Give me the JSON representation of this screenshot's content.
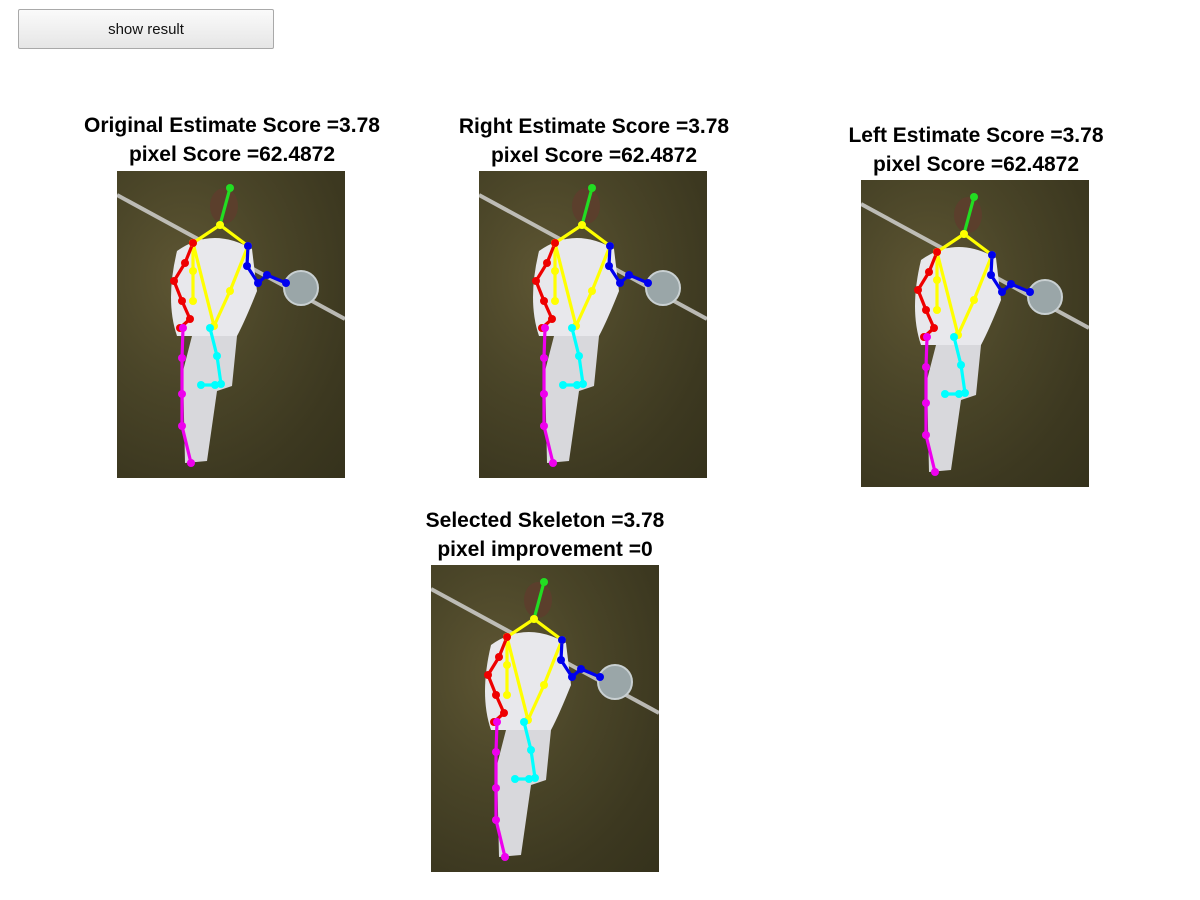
{
  "toolbar": {
    "show_result_label": "show result"
  },
  "panels": [
    {
      "title_line1": "Original Estimate Score =3.78",
      "title_line2": "pixel Score =62.4872"
    },
    {
      "title_line1": "Right Estimate Score =3.78",
      "title_line2": "pixel Score =62.4872"
    },
    {
      "title_line1": "Left Estimate Score =3.78",
      "title_line2": "pixel Score =62.4872"
    },
    {
      "title_line1": "Selected Skeleton =3.78",
      "title_line2": "pixel improvement =0"
    }
  ],
  "colors": {
    "head": "#22dd22",
    "torso": "#ffff00",
    "left_arm": "#0000ee",
    "right_arm": "#ee0000",
    "left_leg": "#00ffff",
    "right_leg": "#ee00ee",
    "field": "#4a4528",
    "jersey": "#e8e8ec",
    "field_line": "#d9d9d9"
  }
}
